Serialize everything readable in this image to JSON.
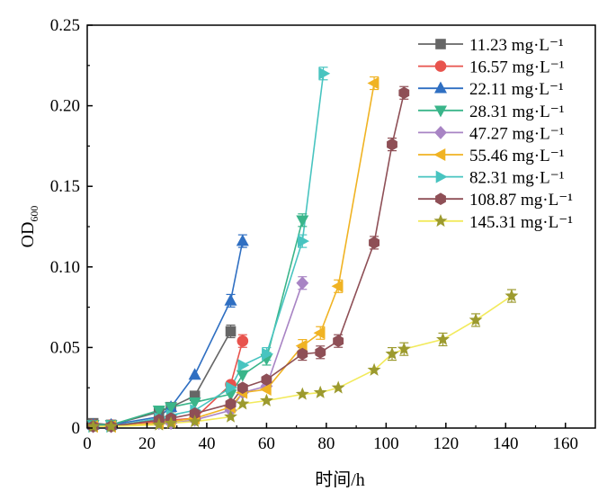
{
  "chart_data": {
    "type": "line",
    "title": "",
    "xlabel": "时间/h",
    "ylabel": {
      "main": "OD",
      "subscript": "600"
    },
    "xlim": [
      0,
      170
    ],
    "ylim": [
      0,
      0.25
    ],
    "xticks": [
      "0",
      "20",
      "40",
      "60",
      "80",
      "100",
      "120",
      "140",
      "160"
    ],
    "yticks": [
      "0",
      "0.05",
      "0.10",
      "0.15",
      "0.20",
      "0.25"
    ],
    "legend_position": "top-right",
    "series": [
      {
        "name": "11.23 mg·L⁻¹",
        "color": "#666666",
        "marker": "square",
        "x": [
          2,
          8,
          24,
          28,
          36,
          48
        ],
        "y": [
          0.003,
          0.002,
          0.01,
          0.013,
          0.02,
          0.06
        ]
      },
      {
        "name": "16.57 mg·L⁻¹",
        "color": "#e8534d",
        "marker": "circle",
        "x": [
          2,
          8,
          24,
          28,
          36,
          48,
          52
        ],
        "y": [
          0.002,
          0.002,
          0.004,
          0.005,
          0.006,
          0.027,
          0.054
        ]
      },
      {
        "name": "22.11 mg·L⁻¹",
        "color": "#2f6fc2",
        "marker": "triangle-up",
        "x": [
          2,
          8,
          24,
          28,
          36,
          48,
          52
        ],
        "y": [
          0.002,
          0.002,
          0.007,
          0.013,
          0.033,
          0.079,
          0.116
        ]
      },
      {
        "name": "28.31 mg·L⁻¹",
        "color": "#3ab58a",
        "marker": "triangle-down",
        "x": [
          2,
          8,
          24,
          28,
          36,
          48,
          52,
          60,
          72
        ],
        "y": [
          0.002,
          0.002,
          0.011,
          0.013,
          0.016,
          0.021,
          0.033,
          0.043,
          0.129
        ]
      },
      {
        "name": "47.27 mg·L⁻¹",
        "color": "#a884c4",
        "marker": "diamond",
        "x": [
          2,
          8,
          24,
          28,
          36,
          48,
          52,
          60,
          72
        ],
        "y": [
          0.001,
          0.001,
          0.003,
          0.003,
          0.005,
          0.011,
          0.022,
          0.026,
          0.09
        ]
      },
      {
        "name": "55.46 mg·L⁻¹",
        "color": "#f0b323",
        "marker": "triangle-left",
        "x": [
          2,
          8,
          24,
          28,
          36,
          48,
          52,
          60,
          72,
          78,
          84,
          96
        ],
        "y": [
          0.001,
          0.001,
          0.003,
          0.004,
          0.006,
          0.013,
          0.022,
          0.024,
          0.051,
          0.059,
          0.088,
          0.214
        ]
      },
      {
        "name": "82.31 mg·L⁻¹",
        "color": "#48c4c0",
        "marker": "triangle-right",
        "x": [
          2,
          8,
          24,
          28,
          36,
          48,
          52,
          60,
          72,
          79
        ],
        "y": [
          0.001,
          0.001,
          0.006,
          0.008,
          0.011,
          0.025,
          0.039,
          0.046,
          0.116,
          0.22
        ]
      },
      {
        "name": "108.87 mg·L⁻¹",
        "color": "#8e4f56",
        "marker": "hexagon",
        "x": [
          2,
          8,
          24,
          28,
          36,
          48,
          52,
          60,
          72,
          78,
          84,
          96,
          102,
          106
        ],
        "y": [
          0.001,
          0.001,
          0.005,
          0.006,
          0.009,
          0.015,
          0.025,
          0.03,
          0.046,
          0.047,
          0.054,
          0.115,
          0.176,
          0.208
        ]
      },
      {
        "name": "145.31 mg·L⁻¹",
        "color": "#9c9a2e",
        "lineColor": "#f2ea5c",
        "marker": "star",
        "x": [
          2,
          8,
          24,
          28,
          36,
          48,
          52,
          60,
          72,
          78,
          84,
          96,
          102,
          106,
          119,
          130,
          142
        ],
        "y": [
          0.001,
          0.001,
          0.002,
          0.003,
          0.004,
          0.007,
          0.015,
          0.017,
          0.021,
          0.022,
          0.025,
          0.036,
          0.046,
          0.049,
          0.055,
          0.067,
          0.082
        ]
      }
    ]
  }
}
